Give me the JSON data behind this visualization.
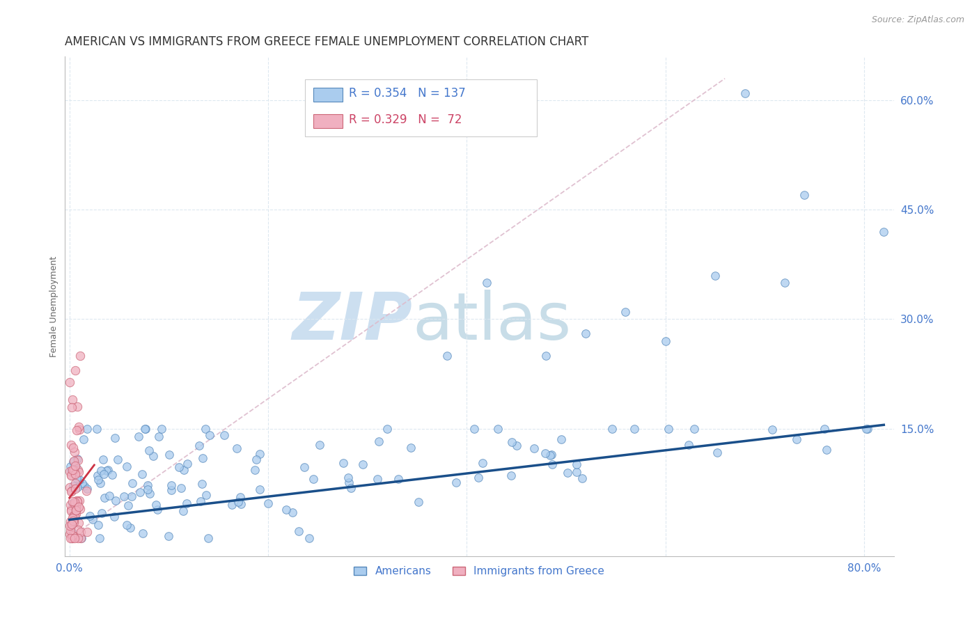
{
  "title": "AMERICAN VS IMMIGRANTS FROM GREECE FEMALE UNEMPLOYMENT CORRELATION CHART",
  "source": "Source: ZipAtlas.com",
  "ylabel": "Female Unemployment",
  "ytick_values": [
    0.15,
    0.3,
    0.45,
    0.6
  ],
  "xlim": [
    -0.005,
    0.83
  ],
  "ylim": [
    -0.025,
    0.66
  ],
  "watermark_zip": "ZIP",
  "watermark_atlas": "atlas",
  "watermark_color": "#ccdff0",
  "americans_face_color": "#aaccee",
  "americans_edge_color": "#5588bb",
  "greece_face_color": "#f0b0c0",
  "greece_edge_color": "#cc6677",
  "americans_line_color": "#1a4f8a",
  "greece_line_color": "#cc3344",
  "diagonal_color": "#ddbbcc",
  "background_color": "#ffffff",
  "grid_color": "#dde8f0",
  "title_fontsize": 12,
  "axis_label_fontsize": 9,
  "tick_fontsize": 11,
  "source_fontsize": 9,
  "R_americans": 0.354,
  "N_americans": 137,
  "R_greece": 0.329,
  "N_greece": 72,
  "legend_am_color": "#aaccee",
  "legend_am_edge": "#5588bb",
  "legend_gr_color": "#f0b0c0",
  "legend_gr_edge": "#cc6677",
  "legend_text_blue": "#4477cc",
  "legend_text_pink": "#cc4466",
  "axis_tick_color": "#4477cc"
}
